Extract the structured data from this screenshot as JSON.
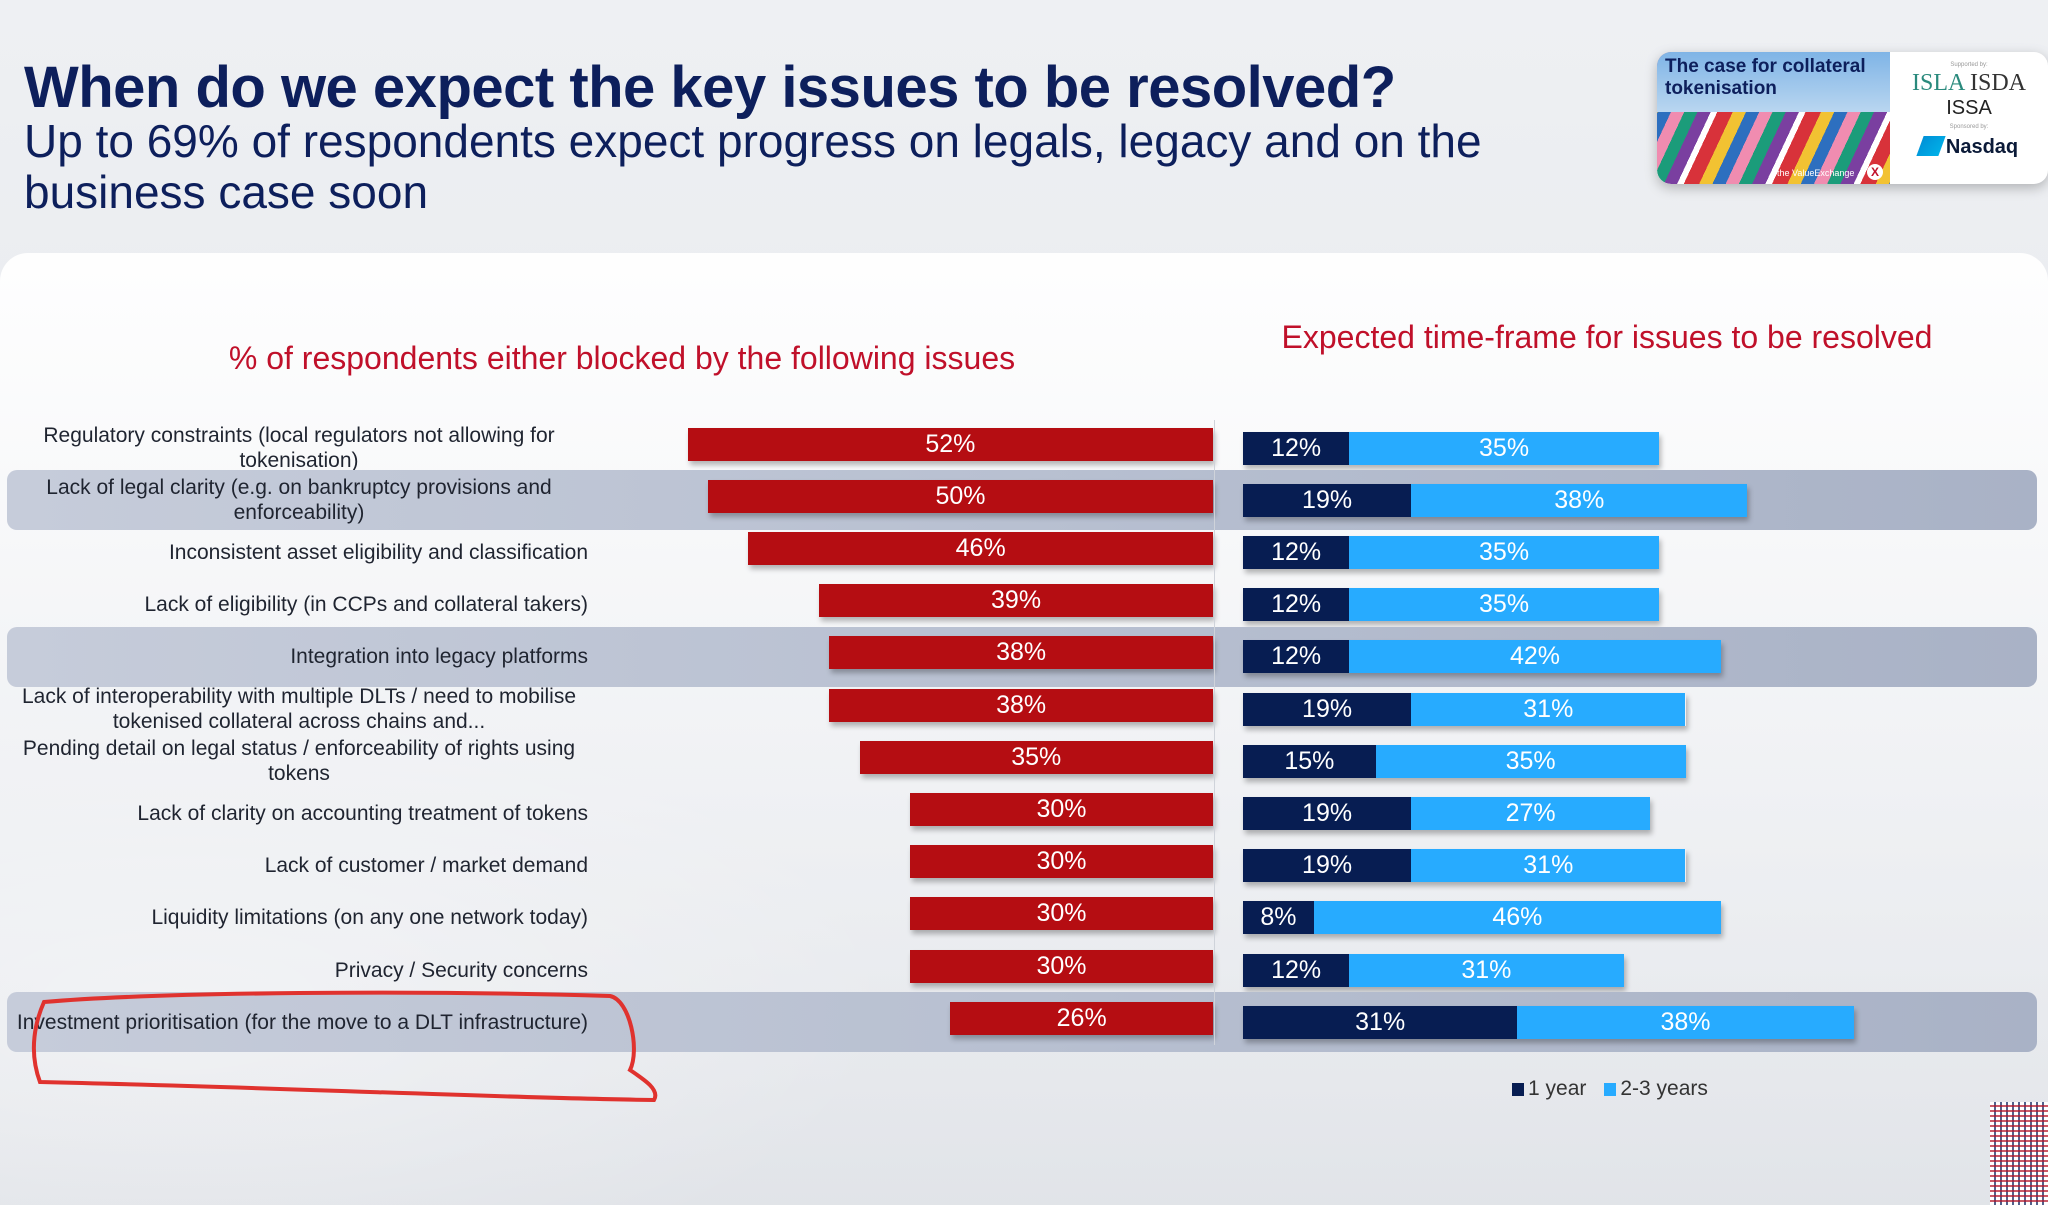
{
  "header": {
    "title": "When do we expect the key issues to be resolved?",
    "subtitle": "Up to 69% of respondents expect progress on legals, legacy and on the business case soon"
  },
  "report_card": {
    "cover_title": "The case for collateral tokenisation",
    "brand": "the ValueExchange",
    "brand_mark": "X",
    "supported_by_label": "Supported by:",
    "supporters": [
      "ISLA",
      "ISDA",
      "ISSA"
    ],
    "sponsored_by_label": "Sponsored by:",
    "sponsor": "Nasdaq"
  },
  "colors": {
    "blocked": "#b50d12",
    "one_year": "#071d52",
    "two_three_years": "#27abff",
    "heading": "#c0102a",
    "title": "#0d1f5c",
    "annotation": "#e0322e"
  },
  "chart_data": [
    {
      "type": "bar",
      "orientation": "horizontal",
      "title": "% of respondents either blocked by the following issues",
      "categories": [
        "Regulatory constraints (local regulators not allowing for tokenisation)",
        "Lack of legal clarity (e.g. on bankruptcy provisions and enforceability)",
        "Inconsistent asset eligibility and classification",
        "Lack of eligibility (in CCPs and collateral takers)",
        "Integration into legacy platforms",
        "Lack of interoperability with multiple DLTs / need to mobilise tokenised collateral across chains and...",
        "Pending detail on legal status / enforceability of rights using tokens",
        "Lack of clarity on accounting treatment of tokens",
        "Lack of customer / market demand",
        "Liquidity limitations (on any one network today)",
        "Privacy / Security concerns",
        "Investment prioritisation (for the move to a DLT infrastructure)"
      ],
      "values": [
        52,
        50,
        46,
        39,
        38,
        38,
        35,
        30,
        30,
        30,
        30,
        26
      ],
      "data_labels": [
        "52%",
        "50%",
        "46%",
        "39%",
        "38%",
        "38%",
        "35%",
        "30%",
        "30%",
        "30%",
        "30%",
        "26%"
      ],
      "xlim": [
        0,
        60
      ],
      "direction": "right-to-left",
      "grid": false,
      "highlighted_rows": [
        1,
        4,
        11
      ]
    },
    {
      "type": "bar",
      "orientation": "horizontal",
      "stacked": true,
      "title": "Expected time-frame for issues to be resolved",
      "legend": [
        "1 year",
        "2-3 years"
      ],
      "legend_position": "bottom-right",
      "series": [
        {
          "name": "1 year",
          "values": [
            12,
            19,
            12,
            12,
            12,
            19,
            15,
            19,
            19,
            8,
            12,
            31
          ],
          "data_labels": [
            "12%",
            "19%",
            "12%",
            "12%",
            "12%",
            "19%",
            "15%",
            "19%",
            "19%",
            "8%",
            "12%",
            "31%"
          ]
        },
        {
          "name": "2-3 years",
          "values": [
            35,
            38,
            35,
            35,
            42,
            31,
            35,
            27,
            31,
            46,
            31,
            38
          ],
          "data_labels": [
            "35%",
            "38%",
            "35%",
            "35%",
            "42%",
            "31%",
            "35%",
            "27%",
            "31%",
            "46%",
            "31%",
            "38%"
          ]
        }
      ],
      "xlim": [
        0,
        80
      ],
      "grid": false
    }
  ],
  "legend": {
    "items": [
      {
        "label": "1 year"
      },
      {
        "label": "2-3 years"
      }
    ]
  }
}
